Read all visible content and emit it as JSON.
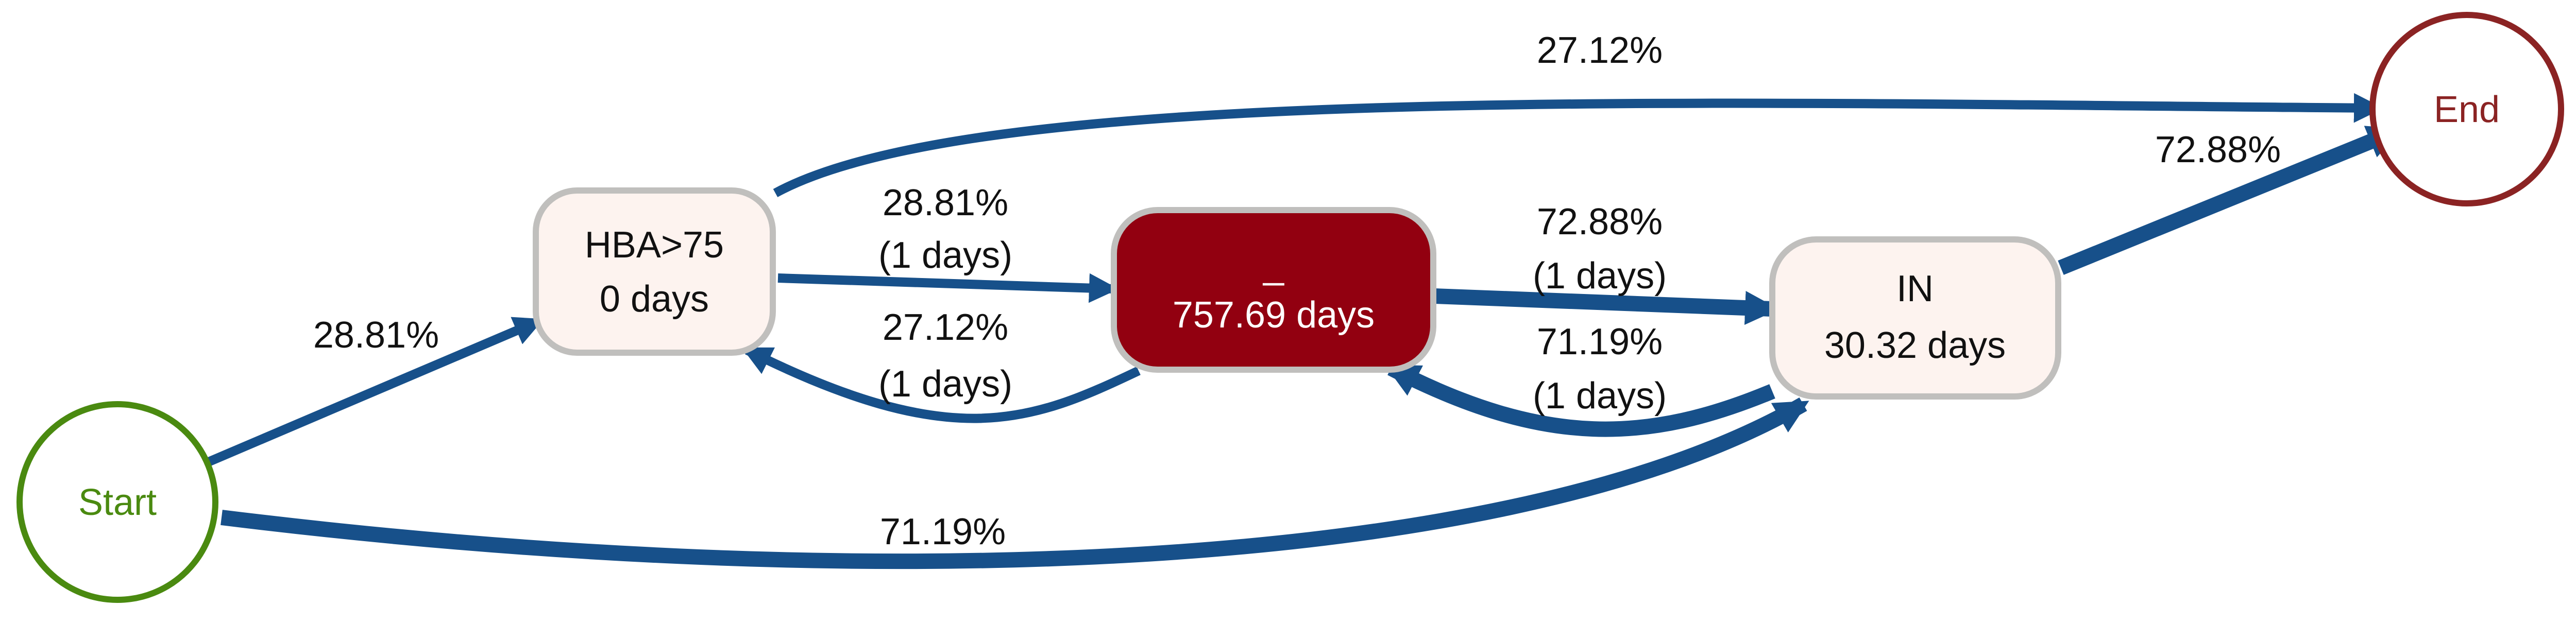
{
  "diagram": {
    "nodes": {
      "start": {
        "label": "Start",
        "color": "#4a8a10"
      },
      "end": {
        "label": "End",
        "color": "#8b2323"
      },
      "hba": {
        "line1": "HBA>75",
        "line2": "0 days",
        "fill": "#fdf3ef",
        "stroke": "#c0bfbd",
        "text_color": "#111111"
      },
      "underscore": {
        "line1": "_",
        "line2": "757.69 days",
        "fill": "#920010",
        "stroke": "#c0bfbd",
        "text_color": "#ffffff"
      },
      "in": {
        "line1": "IN",
        "line2": "30.32 days",
        "fill": "#fdf3ef",
        "stroke": "#c0bfbd",
        "text_color": "#111111"
      }
    },
    "edges": {
      "start_hba": {
        "pct": "28.81%"
      },
      "hba_end": {
        "pct": "27.12%"
      },
      "hba_underscore": {
        "pct": "28.81%",
        "time": "(1 days)"
      },
      "underscore_hba": {
        "pct": "27.12%",
        "time": "(1 days)"
      },
      "underscore_in": {
        "pct": "72.88%",
        "time": "(1 days)"
      },
      "in_underscore": {
        "pct": "71.19%",
        "time": "(1 days)"
      },
      "in_end": {
        "pct": "72.88%"
      },
      "start_in": {
        "pct": "71.19%"
      }
    },
    "edge_color": "#17508a"
  }
}
